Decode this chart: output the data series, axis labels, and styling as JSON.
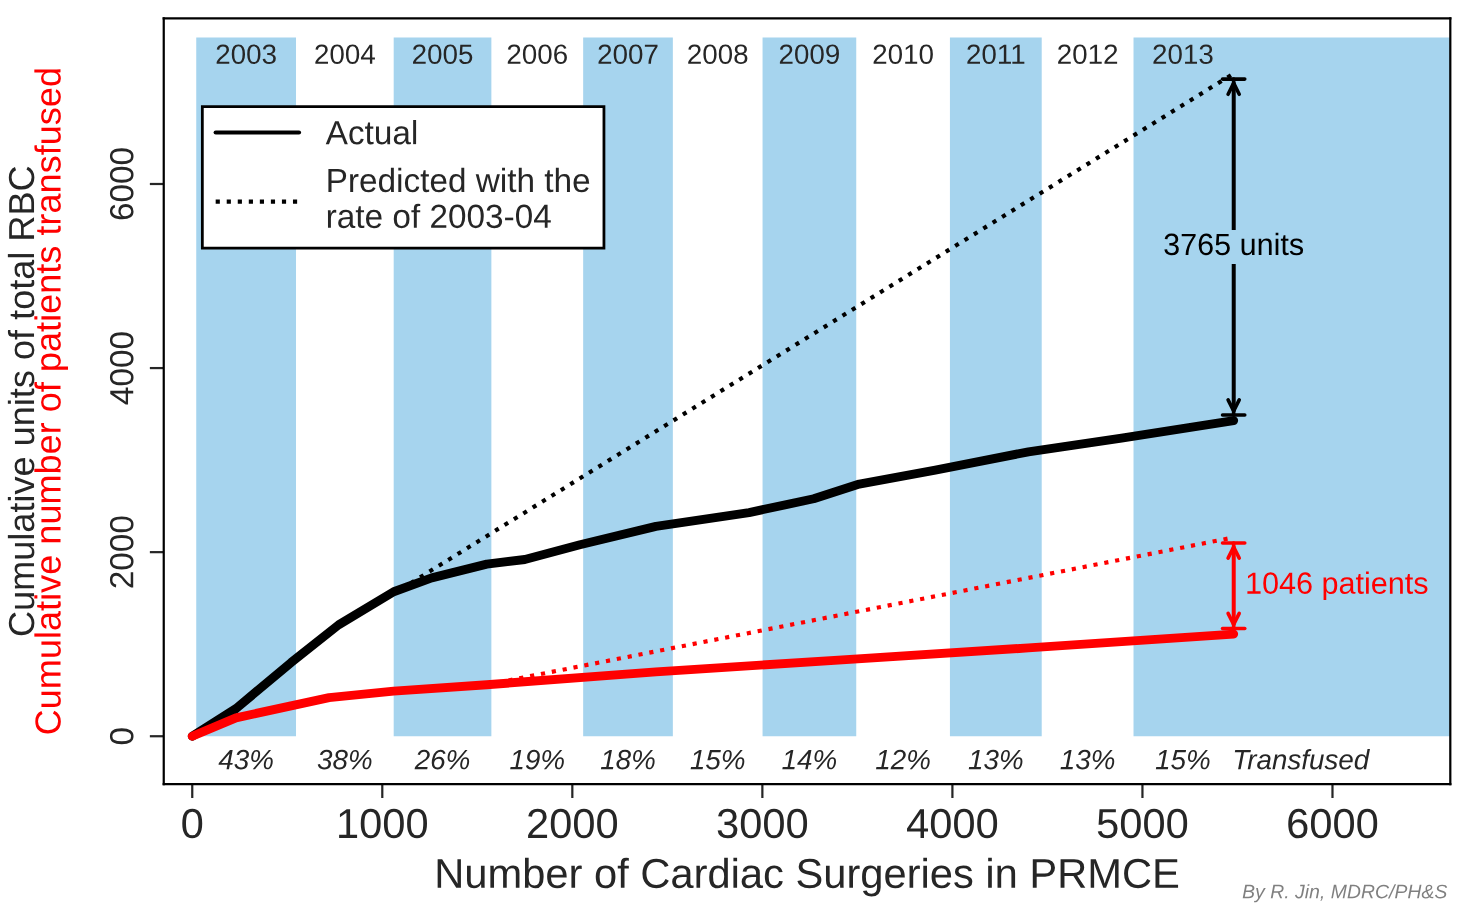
{
  "chart_data": {
    "type": "line",
    "xlabel": "Number of Cardiac Surgeries in PRMCE",
    "ylabel": "Cumulative units of total RBC",
    "series": [
      {
        "name": "Actual",
        "color": "#000000",
        "line_style": "solid",
        "x": [
          0,
          230,
          520,
          770,
          1060,
          1260,
          1550,
          1750,
          2040,
          2440,
          2930,
          3270,
          3510,
          3910,
          4400,
          4890,
          5480
        ],
        "values": [
          0,
          300,
          800,
          1210,
          1570,
          1720,
          1870,
          1920,
          2080,
          2280,
          2430,
          2580,
          2740,
          2890,
          3090,
          3240,
          3430
        ]
      },
      {
        "name": "Predicted with the\nrate of 2003-04",
        "color": "#000000",
        "line_style": "dotted",
        "x": [
          1100,
          5480
        ],
        "values": [
          1600,
          7200
        ]
      },
      {
        "color": "#ff0000",
        "line_style": "solid",
        "x": [
          0,
          230,
          720,
          1060,
          1550,
          2440,
          3420,
          4400,
          5480
        ],
        "values": [
          0,
          200,
          420,
          490,
          560,
          700,
          830,
          960,
          1110
        ]
      },
      {
        "color": "#ff0000",
        "line_style": "dotted",
        "x": [
          1550,
          5480
        ],
        "values": [
          560,
          2160
        ]
      }
    ],
    "xlim": [
      -150,
      6620
    ],
    "ylim": [
      -520,
      7800
    ],
    "xticks": [
      0,
      1000,
      2000,
      3000,
      4000,
      5000,
      6000
    ],
    "yticks": [
      0,
      2000,
      4000,
      6000
    ],
    "grid": false,
    "legend": "top left",
    "bands": [
      {
        "axis": "x",
        "from": 21,
        "to": 546,
        "label": "2003",
        "color": "#a6d4ee"
      },
      {
        "axis": "x",
        "from": 1060,
        "to": 1574,
        "label": "2005",
        "color": "#a6d4ee"
      },
      {
        "axis": "x",
        "from": 2057,
        "to": 2529,
        "label": "2007",
        "color": "#a6d4ee"
      },
      {
        "axis": "x",
        "from": 3001,
        "to": 3494,
        "label": "2009",
        "color": "#a6d4ee"
      },
      {
        "axis": "x",
        "from": 3987,
        "to": 4470,
        "label": "2011",
        "color": "#a6d4ee"
      },
      {
        "axis": "x",
        "from": 4953,
        "to": 6620,
        "label": "2013",
        "color": "#a6d4ee"
      }
    ],
    "annotations": [
      "Cumulative number of patients transfused",
      "By R. Jin, MDRC/PH&S",
      "3765 units",
      "1046 patients",
      "2004",
      "2006",
      "2008",
      "2010",
      "2012",
      "43%",
      "38%",
      "26%",
      "19%",
      "18%",
      "15%",
      "14%",
      "12%",
      "13%",
      "13%",
      "15%",
      "Transfused"
    ]
  }
}
